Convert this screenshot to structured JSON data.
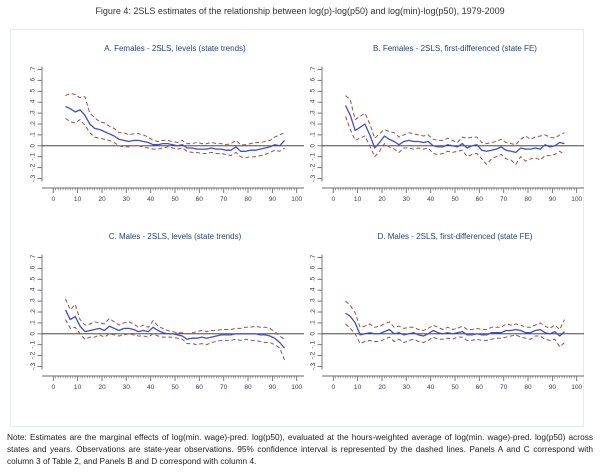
{
  "figure_title": "Figure 4: 2SLS estimates of the relationship between log(p)-log(p50) and log(min)-log(p50), 1979-2009",
  "note": "Note: Estimates are the marginal effects of log(min. wage)-pred. log(p50), evaluated at the hours-weighted average of log(min. wage)-pred. log(p50) across states and years. Observations are state-year observations. 95% confidence interval is represented by the dashed lines. Panels A and C correspond with column 3 of Table 2, and Panels B and D correspond with column 4.",
  "colors": {
    "estimate_line": "#3f51c1",
    "ci_line": "#9a4f4c",
    "axis": "#6a6a6a",
    "zero_line": "#2b2b2b",
    "panel_title": "#26456e",
    "figure_border": "#e3eeea"
  },
  "axes": {
    "ylim": [
      -0.35,
      0.75
    ],
    "xlim": [
      -3,
      103
    ],
    "ytick_values": [
      -0.3,
      -0.2,
      -0.1,
      0,
      0.1,
      0.2,
      0.3,
      0.4,
      0.5,
      0.6,
      0.7
    ],
    "ytick_labels": [
      "-.3",
      "-.2",
      "-.1",
      "0",
      ".1",
      ".2",
      ".3",
      ".4",
      ".5",
      ".6",
      ".7"
    ],
    "xtick_values": [
      0,
      10,
      20,
      30,
      40,
      50,
      60,
      70,
      80,
      90,
      100
    ],
    "xtick_labels": [
      "0",
      "10",
      "20",
      "30",
      "40",
      "50",
      "60",
      "70",
      "80",
      "90",
      "100"
    ],
    "x_minor_step": 1,
    "zero_line": true,
    "grid": false,
    "legend": "none"
  },
  "chart_data": [
    {
      "type": "line",
      "panel": "A",
      "title": "A. Females - 2SLS, levels (state trends)",
      "xlabel": "",
      "ylabel": "",
      "x": [
        5,
        7,
        9,
        11,
        13,
        15,
        17,
        19,
        21,
        23,
        25,
        27,
        29,
        31,
        33,
        35,
        37,
        39,
        41,
        43,
        45,
        47,
        49,
        51,
        53,
        55,
        57,
        59,
        61,
        63,
        65,
        67,
        69,
        71,
        73,
        75,
        77,
        79,
        81,
        83,
        85,
        87,
        89,
        91,
        93,
        95
      ],
      "series": [
        {
          "name": "2SLS estimate",
          "style": "solid",
          "values": [
            0.36,
            0.34,
            0.31,
            0.33,
            0.28,
            0.2,
            0.16,
            0.15,
            0.13,
            0.11,
            0.09,
            0.06,
            0.05,
            0.04,
            0.05,
            0.05,
            0.04,
            0.03,
            0.01,
            0.01,
            0.02,
            0.02,
            0.01,
            0.0,
            0.01,
            -0.02,
            -0.02,
            -0.03,
            -0.03,
            -0.03,
            -0.02,
            -0.03,
            -0.03,
            -0.04,
            -0.04,
            -0.01,
            -0.05,
            -0.05,
            -0.04,
            -0.04,
            -0.03,
            -0.02,
            -0.01,
            0.01,
            0.0,
            0.05
          ]
        },
        {
          "name": "95% CI upper",
          "style": "dashed",
          "values": [
            0.46,
            0.48,
            0.47,
            0.44,
            0.45,
            0.3,
            0.26,
            0.22,
            0.21,
            0.18,
            0.16,
            0.12,
            0.12,
            0.1,
            0.11,
            0.11,
            0.1,
            0.08,
            0.05,
            0.04,
            0.05,
            0.05,
            0.04,
            0.03,
            0.05,
            0.02,
            0.02,
            0.03,
            0.02,
            0.02,
            0.03,
            0.02,
            0.02,
            0.01,
            0.02,
            0.05,
            0.01,
            0.01,
            0.02,
            0.03,
            0.03,
            0.04,
            0.05,
            0.08,
            0.1,
            0.12
          ]
        },
        {
          "name": "95% CI lower",
          "style": "dashed",
          "values": [
            0.25,
            0.22,
            0.21,
            0.24,
            0.19,
            0.12,
            0.08,
            0.07,
            0.06,
            0.05,
            0.03,
            0.0,
            -0.01,
            -0.01,
            0.0,
            0.0,
            -0.01,
            -0.02,
            -0.03,
            -0.03,
            -0.02,
            -0.01,
            -0.02,
            -0.03,
            -0.02,
            -0.05,
            -0.06,
            -0.06,
            -0.07,
            -0.07,
            -0.06,
            -0.07,
            -0.07,
            -0.08,
            -0.09,
            -0.06,
            -0.1,
            -0.11,
            -0.1,
            -0.1,
            -0.09,
            -0.08,
            -0.06,
            -0.04,
            -0.05,
            -0.02
          ]
        }
      ]
    },
    {
      "type": "line",
      "panel": "B",
      "title": "B. Females - 2SLS, first-differenced (state FE)",
      "xlabel": "",
      "ylabel": "",
      "x": [
        5,
        7,
        9,
        11,
        13,
        15,
        17,
        19,
        21,
        23,
        25,
        27,
        29,
        31,
        33,
        35,
        37,
        39,
        41,
        43,
        45,
        47,
        49,
        51,
        53,
        55,
        57,
        59,
        61,
        63,
        65,
        67,
        69,
        71,
        73,
        75,
        77,
        79,
        81,
        83,
        85,
        87,
        89,
        91,
        93,
        95
      ],
      "series": [
        {
          "name": "2SLS estimate",
          "style": "solid",
          "values": [
            0.37,
            0.28,
            0.14,
            0.17,
            0.2,
            0.1,
            -0.02,
            0.03,
            0.09,
            0.06,
            0.04,
            0.01,
            0.04,
            0.05,
            0.04,
            0.04,
            0.03,
            0.04,
            0.0,
            -0.01,
            -0.01,
            0.01,
            0.0,
            -0.01,
            0.02,
            -0.02,
            0.0,
            0.01,
            -0.04,
            -0.05,
            -0.04,
            -0.03,
            -0.01,
            -0.04,
            -0.05,
            -0.06,
            -0.02,
            -0.03,
            -0.03,
            -0.02,
            -0.03,
            0.01,
            -0.01,
            0.0,
            0.03,
            0.02
          ]
        },
        {
          "name": "95% CI upper",
          "style": "dashed",
          "values": [
            0.46,
            0.42,
            0.24,
            0.27,
            0.3,
            0.2,
            0.07,
            0.11,
            0.15,
            0.13,
            0.12,
            0.08,
            0.1,
            0.12,
            0.11,
            0.1,
            0.09,
            0.1,
            0.06,
            0.05,
            0.05,
            0.07,
            0.05,
            0.03,
            0.08,
            0.07,
            0.08,
            0.08,
            0.03,
            0.02,
            0.03,
            0.04,
            0.06,
            0.03,
            0.02,
            0.01,
            0.06,
            0.09,
            0.06,
            0.08,
            0.09,
            0.1,
            0.08,
            0.07,
            0.1,
            0.12
          ]
        },
        {
          "name": "95% CI lower",
          "style": "dashed",
          "values": [
            0.27,
            0.15,
            0.05,
            0.07,
            0.09,
            0.0,
            -0.1,
            -0.05,
            0.02,
            -0.01,
            -0.03,
            -0.06,
            -0.02,
            -0.02,
            -0.03,
            -0.02,
            -0.03,
            -0.02,
            -0.07,
            -0.08,
            -0.07,
            -0.05,
            -0.06,
            -0.05,
            -0.04,
            -0.1,
            -0.08,
            -0.07,
            -0.12,
            -0.17,
            -0.12,
            -0.1,
            -0.08,
            -0.12,
            -0.13,
            -0.17,
            -0.1,
            -0.14,
            -0.12,
            -0.11,
            -0.13,
            -0.09,
            -0.09,
            -0.08,
            -0.05,
            -0.08
          ]
        }
      ]
    },
    {
      "type": "line",
      "panel": "C",
      "title": "C. Males - 2SLS, levels (state trends)",
      "xlabel": "",
      "ylabel": "",
      "x": [
        5,
        7,
        9,
        11,
        13,
        15,
        17,
        19,
        21,
        23,
        25,
        27,
        29,
        31,
        33,
        35,
        37,
        39,
        41,
        43,
        45,
        47,
        49,
        51,
        53,
        55,
        57,
        59,
        61,
        63,
        65,
        67,
        69,
        71,
        73,
        75,
        77,
        79,
        81,
        83,
        85,
        87,
        89,
        91,
        93,
        95
      ],
      "series": [
        {
          "name": "2SLS estimate",
          "style": "solid",
          "values": [
            0.22,
            0.13,
            0.16,
            0.07,
            0.02,
            0.03,
            0.04,
            0.05,
            0.03,
            0.07,
            0.05,
            0.03,
            0.05,
            0.05,
            0.04,
            0.02,
            0.03,
            0.02,
            0.06,
            0.03,
            0.01,
            0.0,
            0.0,
            -0.01,
            -0.02,
            -0.05,
            -0.04,
            -0.04,
            -0.03,
            -0.04,
            -0.03,
            -0.02,
            -0.01,
            -0.01,
            -0.01,
            0.0,
            0.0,
            0.0,
            0.0,
            0.0,
            -0.01,
            -0.01,
            -0.02,
            -0.04,
            -0.08,
            -0.13
          ]
        },
        {
          "name": "95% CI upper",
          "style": "dashed",
          "values": [
            0.32,
            0.22,
            0.27,
            0.13,
            0.08,
            0.09,
            0.11,
            0.1,
            0.09,
            0.14,
            0.11,
            0.08,
            0.1,
            0.11,
            0.09,
            0.06,
            0.08,
            0.06,
            0.12,
            0.07,
            0.05,
            0.03,
            0.02,
            0.01,
            0.01,
            0.0,
            0.01,
            0.02,
            0.03,
            0.02,
            0.03,
            0.03,
            0.04,
            0.04,
            0.04,
            0.05,
            0.05,
            0.06,
            0.06,
            0.07,
            0.06,
            0.06,
            0.05,
            0.02,
            -0.02,
            -0.05
          ]
        },
        {
          "name": "95% CI lower",
          "style": "dashed",
          "values": [
            0.13,
            0.05,
            0.06,
            0.0,
            -0.05,
            -0.03,
            -0.03,
            -0.01,
            -0.03,
            0.0,
            -0.01,
            -0.02,
            -0.01,
            0.0,
            -0.01,
            -0.02,
            -0.02,
            -0.03,
            0.0,
            -0.02,
            -0.03,
            -0.03,
            -0.03,
            -0.04,
            -0.05,
            -0.09,
            -0.09,
            -0.1,
            -0.09,
            -0.1,
            -0.08,
            -0.07,
            -0.06,
            -0.06,
            -0.06,
            -0.05,
            -0.06,
            -0.05,
            -0.06,
            -0.06,
            -0.07,
            -0.08,
            -0.08,
            -0.1,
            -0.13,
            -0.24
          ]
        }
      ]
    },
    {
      "type": "line",
      "panel": "D",
      "title": "D. Males - 2SLS, first-differenced (state FE)",
      "xlabel": "",
      "ylabel": "",
      "x": [
        5,
        7,
        9,
        11,
        13,
        15,
        17,
        19,
        21,
        23,
        25,
        27,
        29,
        31,
        33,
        35,
        37,
        39,
        41,
        43,
        45,
        47,
        49,
        51,
        53,
        55,
        57,
        59,
        61,
        63,
        65,
        67,
        69,
        71,
        73,
        75,
        77,
        79,
        81,
        83,
        85,
        87,
        89,
        91,
        93,
        95
      ],
      "series": [
        {
          "name": "2SLS estimate",
          "style": "solid",
          "values": [
            0.19,
            0.16,
            0.1,
            -0.01,
            0.0,
            0.01,
            0.0,
            0.0,
            0.02,
            0.04,
            0.0,
            0.01,
            -0.01,
            0.0,
            0.01,
            -0.01,
            -0.02,
            0.0,
            0.03,
            0.01,
            0.0,
            0.01,
            0.0,
            0.01,
            0.02,
            -0.01,
            -0.01,
            0.0,
            -0.01,
            -0.01,
            0.01,
            0.01,
            0.01,
            0.03,
            0.03,
            0.04,
            0.03,
            0.01,
            0.01,
            0.03,
            0.04,
            0.01,
            0.0,
            0.02,
            -0.02,
            0.02
          ]
        },
        {
          "name": "95% CI upper",
          "style": "dashed",
          "values": [
            0.3,
            0.26,
            0.19,
            0.06,
            0.07,
            0.09,
            0.06,
            0.07,
            0.09,
            0.11,
            0.06,
            0.07,
            0.05,
            0.06,
            0.06,
            0.04,
            0.03,
            0.05,
            0.08,
            0.06,
            0.04,
            0.06,
            0.04,
            0.05,
            0.07,
            0.04,
            0.04,
            0.05,
            0.04,
            0.04,
            0.06,
            0.06,
            0.06,
            0.09,
            0.08,
            0.09,
            0.08,
            0.06,
            0.06,
            0.08,
            0.1,
            0.07,
            0.05,
            0.08,
            0.04,
            0.13
          ]
        },
        {
          "name": "95% CI lower",
          "style": "dashed",
          "values": [
            0.09,
            0.05,
            0.0,
            -0.09,
            -0.07,
            -0.06,
            -0.07,
            -0.07,
            -0.05,
            -0.03,
            -0.07,
            -0.05,
            -0.08,
            -0.06,
            -0.05,
            -0.07,
            -0.08,
            -0.06,
            -0.03,
            -0.05,
            -0.05,
            -0.04,
            -0.05,
            -0.03,
            -0.03,
            -0.06,
            -0.06,
            -0.05,
            -0.06,
            -0.06,
            -0.05,
            -0.04,
            -0.04,
            -0.03,
            -0.02,
            -0.01,
            -0.03,
            -0.04,
            -0.05,
            -0.02,
            -0.02,
            -0.05,
            -0.06,
            -0.05,
            -0.12,
            -0.08
          ]
        }
      ]
    }
  ]
}
